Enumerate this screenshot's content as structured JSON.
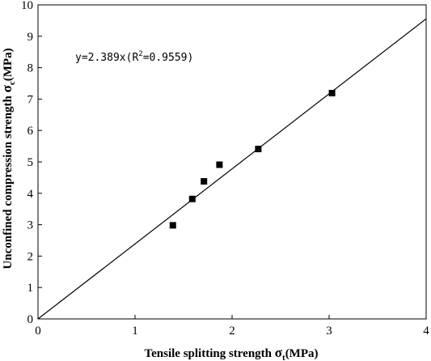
{
  "chart_data": {
    "type": "scatter",
    "xlabel": {
      "main": "Tensile splitting strength ",
      "sym": "σ",
      "sub": "t",
      "unit": "(MPa)"
    },
    "ylabel": {
      "main": "Unconfined compression strength ",
      "sym": "σ",
      "sub": "c",
      "unit": "(MPa)"
    },
    "xlim": [
      0,
      4
    ],
    "ylim": [
      0,
      10
    ],
    "x_ticks": [
      0,
      1,
      2,
      3,
      4
    ],
    "y_ticks": [
      0,
      1,
      2,
      3,
      4,
      5,
      6,
      7,
      8,
      9,
      10
    ],
    "grid": false,
    "points": [
      {
        "x": 1.39,
        "y": 2.98
      },
      {
        "x": 1.59,
        "y": 3.82
      },
      {
        "x": 1.71,
        "y": 4.38
      },
      {
        "x": 1.87,
        "y": 4.91
      },
      {
        "x": 2.27,
        "y": 5.41
      },
      {
        "x": 3.03,
        "y": 7.19
      }
    ],
    "fit_line": {
      "slope": 2.389,
      "intercept": 0,
      "x_range": [
        0,
        4
      ]
    },
    "annotation": {
      "prefix": "y=2.389x(R",
      "sup": "2",
      "suffix": "=0.9559)"
    },
    "colors": {
      "marker": "#000000",
      "line": "#000000",
      "axis": "#000000"
    }
  }
}
